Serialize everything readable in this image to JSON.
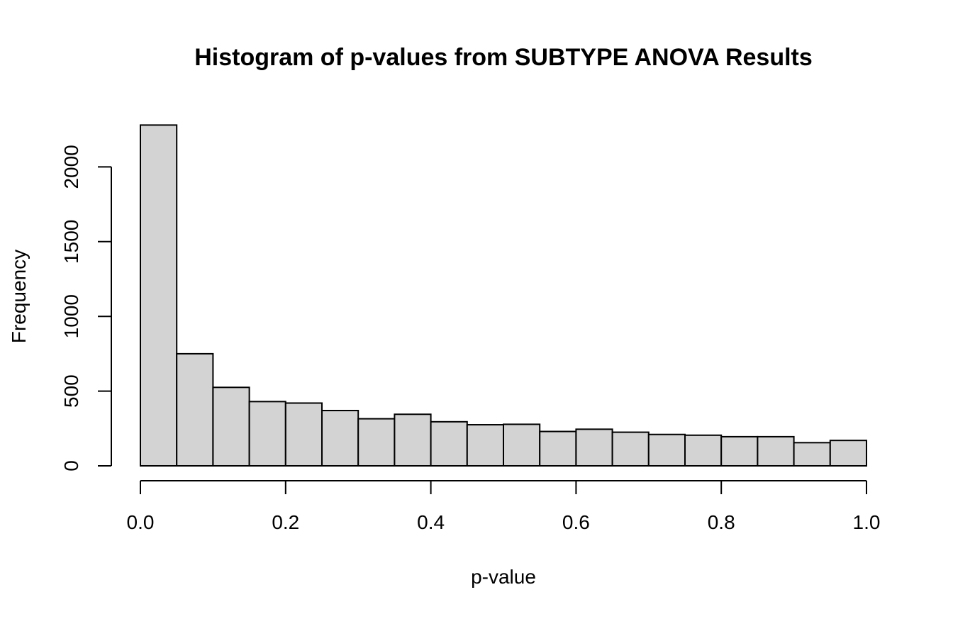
{
  "chart_data": {
    "type": "bar",
    "title": "Histogram of p-values from SUBTYPE ANOVA Results",
    "xlabel": "p-value",
    "ylabel": "Frequency",
    "bin_edges": [
      0.0,
      0.05,
      0.1,
      0.15,
      0.2,
      0.25,
      0.3,
      0.35,
      0.4,
      0.45,
      0.5,
      0.55,
      0.6,
      0.65,
      0.7,
      0.75,
      0.8,
      0.85,
      0.9,
      0.95,
      1.0
    ],
    "values": [
      2280,
      750,
      525,
      430,
      420,
      370,
      315,
      345,
      295,
      275,
      278,
      230,
      245,
      225,
      210,
      205,
      195,
      195,
      155,
      170
    ],
    "xlim": [
      0.0,
      1.0
    ],
    "ylim": [
      0,
      2280
    ],
    "xticks": [
      0.0,
      0.2,
      0.4,
      0.6,
      0.8,
      1.0
    ],
    "xtick_labels": [
      "0.0",
      "0.2",
      "0.4",
      "0.6",
      "0.8",
      "1.0"
    ],
    "yticks": [
      0,
      500,
      1000,
      1500,
      2000
    ],
    "ytick_labels": [
      "0",
      "500",
      "1000",
      "1500",
      "2000"
    ],
    "grid": false,
    "colors": {
      "bar_fill": "#d3d3d3",
      "bar_stroke": "#000000"
    }
  }
}
